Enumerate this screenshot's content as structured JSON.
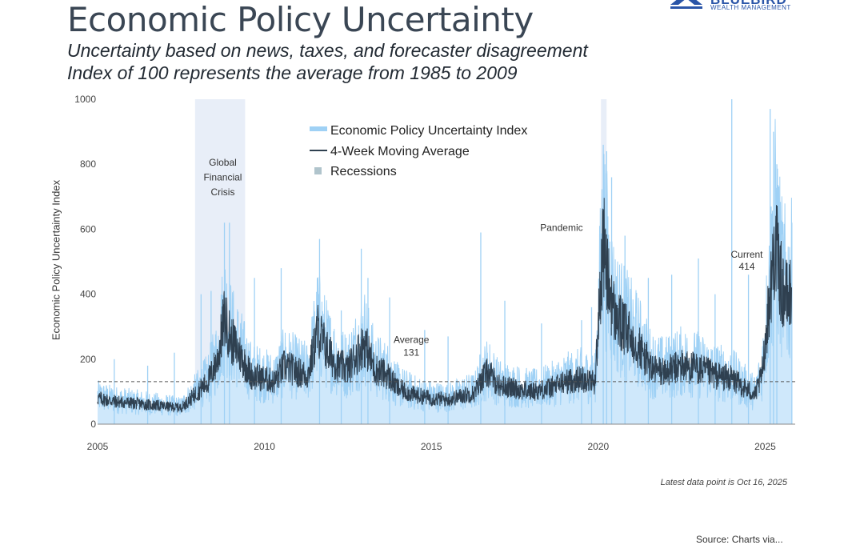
{
  "header": {
    "title": "Economic Policy Uncertainty",
    "subtitle_1": "Uncertainty based on news, taxes, and forecaster disagreement",
    "subtitle_2": "Index of 100 represents the average from 1985 to 2009"
  },
  "brand": {
    "name": "BLUEBIRD",
    "tagline": "WEALTH MANAGEMENT",
    "color": "#2a55a8"
  },
  "footer": {
    "latest": "Latest data point is Oct 16, 2025",
    "source": "Source: Charts via..."
  },
  "colors": {
    "index": "#9fd1f5",
    "index_fill": "#cfe8fb",
    "moving_avg": "#2f4050",
    "recession": "#e8eef8",
    "average_line": "#555555"
  },
  "chart_data": {
    "type": "line",
    "title": "Economic Policy Uncertainty",
    "xlabel": "",
    "ylabel": "Economic Policy Uncertainty Index",
    "xlim": [
      2005,
      2025.9
    ],
    "ylim": [
      0,
      1000
    ],
    "x_ticks": [
      2005,
      2010,
      2015,
      2020,
      2025
    ],
    "y_ticks": [
      0,
      200,
      400,
      600,
      800,
      1000
    ],
    "legend": [
      {
        "label": "Economic Policy Uncertainty Index",
        "key": "index"
      },
      {
        "label": "4-Week Moving Average",
        "key": "moving_avg"
      },
      {
        "label": "Recessions",
        "key": "recession"
      }
    ],
    "recessions": [
      {
        "start": 2007.92,
        "end": 2009.42
      },
      {
        "start": 2020.08,
        "end": 2020.25
      }
    ],
    "average": 131,
    "annotations": [
      {
        "label": "Global",
        "x": 2008.75,
        "y": 795
      },
      {
        "label": "Financial",
        "x": 2008.75,
        "y": 750
      },
      {
        "label": "Crisis",
        "x": 2008.75,
        "y": 705
      },
      {
        "label": "Pandemic",
        "x": 2018.9,
        "y": 595
      },
      {
        "label": "Average",
        "x": 2014.4,
        "y": 250
      },
      {
        "label": "131",
        "x": 2014.4,
        "y": 210
      },
      {
        "label": "Current",
        "x": 2024.45,
        "y": 512
      },
      {
        "label": "414",
        "x": 2024.45,
        "y": 475
      }
    ],
    "series": [
      {
        "name": "4-Week Moving Average",
        "x": [
          2005.0,
          2005.5,
          2006.0,
          2006.5,
          2007.0,
          2007.5,
          2007.9,
          2008.3,
          2008.6,
          2008.8,
          2009.0,
          2009.3,
          2009.6,
          2010.0,
          2010.3,
          2010.6,
          2011.0,
          2011.3,
          2011.6,
          2011.9,
          2012.2,
          2012.5,
          2012.8,
          2013.0,
          2013.3,
          2013.7,
          2014.0,
          2014.5,
          2015.0,
          2015.5,
          2016.0,
          2016.3,
          2016.5,
          2016.7,
          2017.0,
          2017.5,
          2018.0,
          2018.5,
          2019.0,
          2019.5,
          2019.9,
          2020.15,
          2020.3,
          2020.5,
          2020.8,
          2021.2,
          2021.6,
          2022.0,
          2022.5,
          2023.0,
          2023.5,
          2024.0,
          2024.4,
          2024.7,
          2024.9,
          2025.1,
          2025.3,
          2025.5,
          2025.7,
          2025.8
        ],
        "y": [
          80,
          70,
          65,
          60,
          55,
          50,
          90,
          130,
          200,
          330,
          260,
          210,
          150,
          140,
          130,
          180,
          160,
          150,
          290,
          220,
          180,
          170,
          220,
          250,
          170,
          150,
          110,
          90,
          80,
          75,
          90,
          95,
          140,
          160,
          120,
          110,
          100,
          110,
          130,
          140,
          130,
          560,
          430,
          330,
          290,
          240,
          170,
          160,
          180,
          170,
          150,
          140,
          110,
          90,
          150,
          350,
          560,
          420,
          380,
          414
        ]
      },
      {
        "name": "Economic Policy Uncertainty Index (spike peaks)",
        "x": [
          2005.5,
          2006.5,
          2007.3,
          2008.1,
          2008.4,
          2008.8,
          2008.95,
          2009.7,
          2010.5,
          2011.65,
          2012.3,
          2012.9,
          2013.1,
          2013.75,
          2014.8,
          2015.5,
          2016.48,
          2017.2,
          2018.3,
          2019.5,
          2019.8,
          2020.15,
          2020.25,
          2020.4,
          2020.8,
          2021.5,
          2022.2,
          2023.0,
          2023.5,
          2024.0,
          2024.5,
          2025.15,
          2025.25,
          2025.35,
          2025.8
        ],
        "y": [
          200,
          180,
          220,
          400,
          410,
          620,
          620,
          450,
          480,
          570,
          350,
          540,
          450,
          390,
          290,
          270,
          590,
          380,
          310,
          320,
          360,
          860,
          840,
          760,
          580,
          450,
          460,
          510,
          400,
          1040,
          460,
          970,
          900,
          800,
          620
        ]
      }
    ]
  }
}
